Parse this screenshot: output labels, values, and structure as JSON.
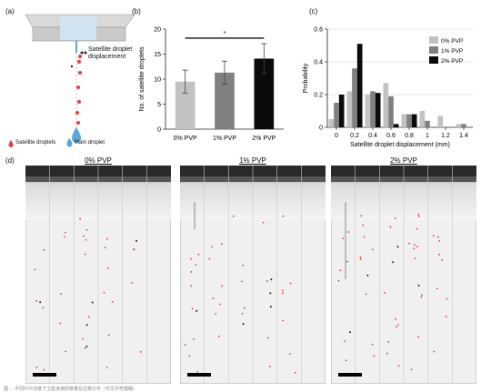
{
  "panel_a": {
    "label": "(a)",
    "annotation": "Satellite droplet\ndisplacement",
    "legend": {
      "satellite_label": "Satellite droplets",
      "main_label": "Main droplet"
    }
  },
  "panel_d": {
    "label": "(d)",
    "titles": [
      "0% PVP",
      "1% PVP",
      "2% PVP"
    ]
  },
  "footer_caption": "图 ... 不同PVP浓度下卫星液滴的数量及位移分布（可见字符模糊）",
  "colors": {
    "light": "#c2c2c2",
    "mid": "#808080",
    "dark": "#0a0a0a",
    "droplet": "#e04040",
    "main_droplet": "#5aa6d6"
  },
  "chart_data": [
    {
      "panel_label": "(b)",
      "type": "bar",
      "categories": [
        "0% PVP",
        "1% PVP",
        "2% PVP"
      ],
      "values": [
        9.5,
        11.3,
        14.1
      ],
      "errors": [
        2.3,
        2.3,
        3.0
      ],
      "ylabel": "No. of satellite droplets",
      "ylim": [
        0,
        20
      ],
      "yticks": [
        0,
        5,
        10,
        15,
        20
      ],
      "significance": "*"
    },
    {
      "panel_label": "(c)",
      "type": "bar",
      "x": [
        0,
        0.2,
        0.4,
        0.6,
        0.8,
        1,
        1.2,
        1.4
      ],
      "x_tick_labels": [
        "0",
        "0.2",
        "0.4",
        "0.6",
        "0.8",
        "1",
        "1.2",
        "1.4"
      ],
      "series": [
        {
          "name": "0% PVP",
          "values": [
            0.05,
            0.22,
            0.2,
            0.27,
            0.08,
            0.1,
            0.07,
            0.02
          ]
        },
        {
          "name": "1% PVP",
          "values": [
            0.15,
            0.36,
            0.22,
            0.19,
            0.08,
            0.04,
            0.0,
            0.02
          ]
        },
        {
          "name": "2% PVP",
          "values": [
            0.2,
            0.51,
            0.21,
            0.02,
            0.08,
            0.0,
            0.0,
            0.0
          ]
        }
      ],
      "xlabel": "Satellite droplet displacement (mm)",
      "ylabel": "Probability",
      "ylim": [
        0,
        0.6
      ],
      "yticks": [
        0,
        0.2,
        0.4,
        0.6
      ],
      "legend": "top-right"
    }
  ]
}
